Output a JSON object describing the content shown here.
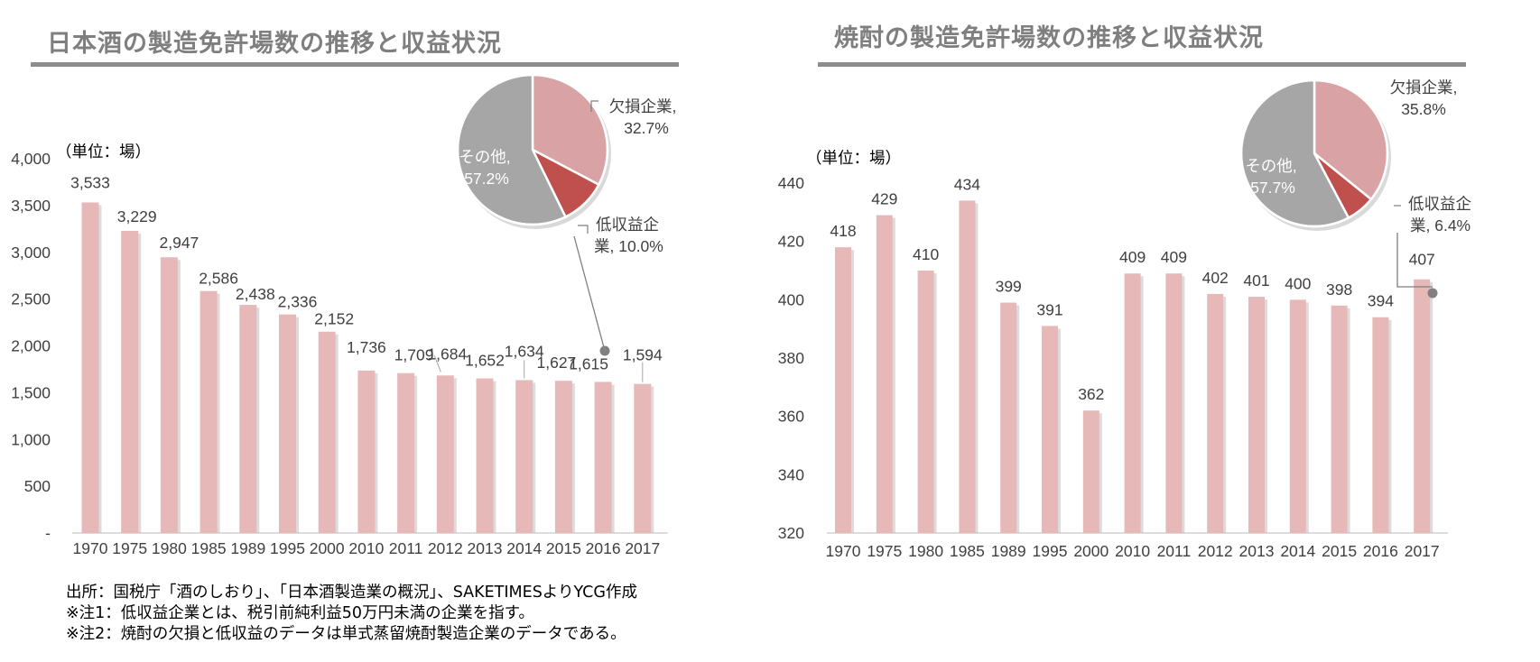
{
  "colors": {
    "bar": "#e6b9b8",
    "bar_shadow": "#bfbfbf",
    "pie_loss": "#d9a3a5",
    "pie_low": "#c0504d",
    "pie_other": "#a6a6a6",
    "title": "#7f7f7f",
    "rule": "#8c8c8c",
    "leader": "#7f7f7f"
  },
  "left": {
    "title": "日本酒の製造免許場数の推移と収益状況",
    "unit_label": "（単位：場）",
    "pie_labels": {
      "loss": [
        "欠損企業,",
        "32.7%"
      ],
      "low": [
        "低収益企",
        "業, 10.0%"
      ],
      "other": [
        "その他,",
        "57.2%"
      ]
    }
  },
  "right": {
    "title": "焼酎の製造免許場数の推移と収益状況",
    "unit_label": "（単位：場）",
    "pie_labels": {
      "loss": [
        "欠損企業,",
        "35.8%"
      ],
      "low": [
        "低収益企",
        "業, 6.4%"
      ],
      "other": [
        "その他,",
        "57.7%"
      ]
    }
  },
  "notes": [
    "出所：国税庁「酒のしおり」、「日本酒製造業の概況」、SAKETIMESよりYCG作成",
    "※注1：低収益企業とは、税引前純利益50万円未満の企業を指す。",
    "※注2：焼酎の欠損と低収益のデータは単式蒸留焼酎製造企業のデータである。"
  ],
  "chart_data": [
    {
      "type": "bar",
      "title": "日本酒の製造免許場数の推移と収益状況",
      "ylabel": "（単位：場）",
      "categories": [
        "1970",
        "1975",
        "1980",
        "1985",
        "1989",
        "1995",
        "2000",
        "2010",
        "2011",
        "2012",
        "2013",
        "2014",
        "2015",
        "2016",
        "2017"
      ],
      "values": [
        3533,
        3229,
        2947,
        2586,
        2438,
        2336,
        2152,
        1736,
        1709,
        1684,
        1652,
        1634,
        1627,
        1615,
        1594
      ],
      "value_labels": [
        "3,533",
        "3,229",
        "2,947",
        "2,586",
        "2,438",
        "2,336",
        "2,152",
        "1,736",
        "1,709",
        "1,684",
        "1,652",
        "1,634",
        "1,627",
        "1,615",
        "1,594"
      ],
      "ylim": [
        0,
        4000
      ],
      "yticks": [
        0,
        500,
        1000,
        1500,
        2000,
        2500,
        3000,
        3500,
        4000
      ],
      "ytick_labels": [
        "-",
        "500",
        "1,000",
        "1,500",
        "2,000",
        "2,500",
        "3,000",
        "3,500",
        "4,000"
      ],
      "grid": false,
      "inset": {
        "type": "pie",
        "slices": [
          {
            "name": "欠損企業",
            "value": 32.7
          },
          {
            "name": "低収益企業",
            "value": 10.0
          },
          {
            "name": "その他",
            "value": 57.2
          }
        ]
      }
    },
    {
      "type": "bar",
      "title": "焼酎の製造免許場数の推移と収益状況",
      "ylabel": "（単位：場）",
      "categories": [
        "1970",
        "1975",
        "1980",
        "1985",
        "1989",
        "1995",
        "2000",
        "2010",
        "2011",
        "2012",
        "2013",
        "2014",
        "2015",
        "2016",
        "2017"
      ],
      "values": [
        418,
        429,
        410,
        434,
        399,
        391,
        362,
        409,
        409,
        402,
        401,
        400,
        398,
        394,
        407
      ],
      "value_labels": [
        "418",
        "429",
        "410",
        "434",
        "399",
        "391",
        "362",
        "409",
        "409",
        "402",
        "401",
        "400",
        "398",
        "394",
        "407"
      ],
      "ylim": [
        320,
        440
      ],
      "yticks": [
        320,
        340,
        360,
        380,
        400,
        420,
        440
      ],
      "ytick_labels": [
        "320",
        "340",
        "360",
        "380",
        "400",
        "420",
        "440"
      ],
      "grid": false,
      "inset": {
        "type": "pie",
        "slices": [
          {
            "name": "欠損企業",
            "value": 35.8
          },
          {
            "name": "低収益企業",
            "value": 6.4
          },
          {
            "name": "その他",
            "value": 57.7
          }
        ]
      }
    }
  ]
}
